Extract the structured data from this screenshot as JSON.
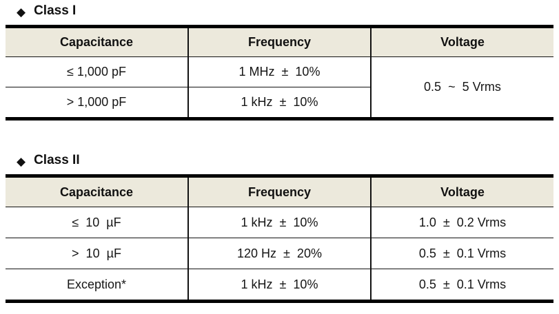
{
  "colors": {
    "header_bg": "#ECE9DC",
    "border": "#000000",
    "text": "#161616"
  },
  "sections": [
    {
      "bullet": "◆",
      "title": "Class I",
      "columns": [
        "Capacitance",
        "Frequency",
        "Voltage"
      ],
      "rows": [
        {
          "capacitance": "≤ 1,000 pF",
          "frequency": "1 MHz  ±  10%",
          "voltage": "0.5  ~  5 Vrms"
        },
        {
          "capacitance": "> 1,000 pF",
          "frequency": "1 kHz  ±  10%"
        }
      ],
      "voltage_merged_note": "voltage cell spans both rows"
    },
    {
      "bullet": "◆",
      "title": "Class II",
      "columns": [
        "Capacitance",
        "Frequency",
        "Voltage"
      ],
      "rows": [
        {
          "capacitance": "≤  10  µF",
          "frequency": "1 kHz  ±  10%",
          "voltage": "1.0  ±  0.2 Vrms"
        },
        {
          "capacitance": ">  10  µF",
          "frequency": "120 Hz  ±  20%",
          "voltage": "0.5  ±  0.1 Vrms"
        },
        {
          "capacitance": "Exception*",
          "frequency": "1 kHz  ±  10%",
          "voltage": "0.5  ±  0.1 Vrms"
        }
      ]
    }
  ]
}
